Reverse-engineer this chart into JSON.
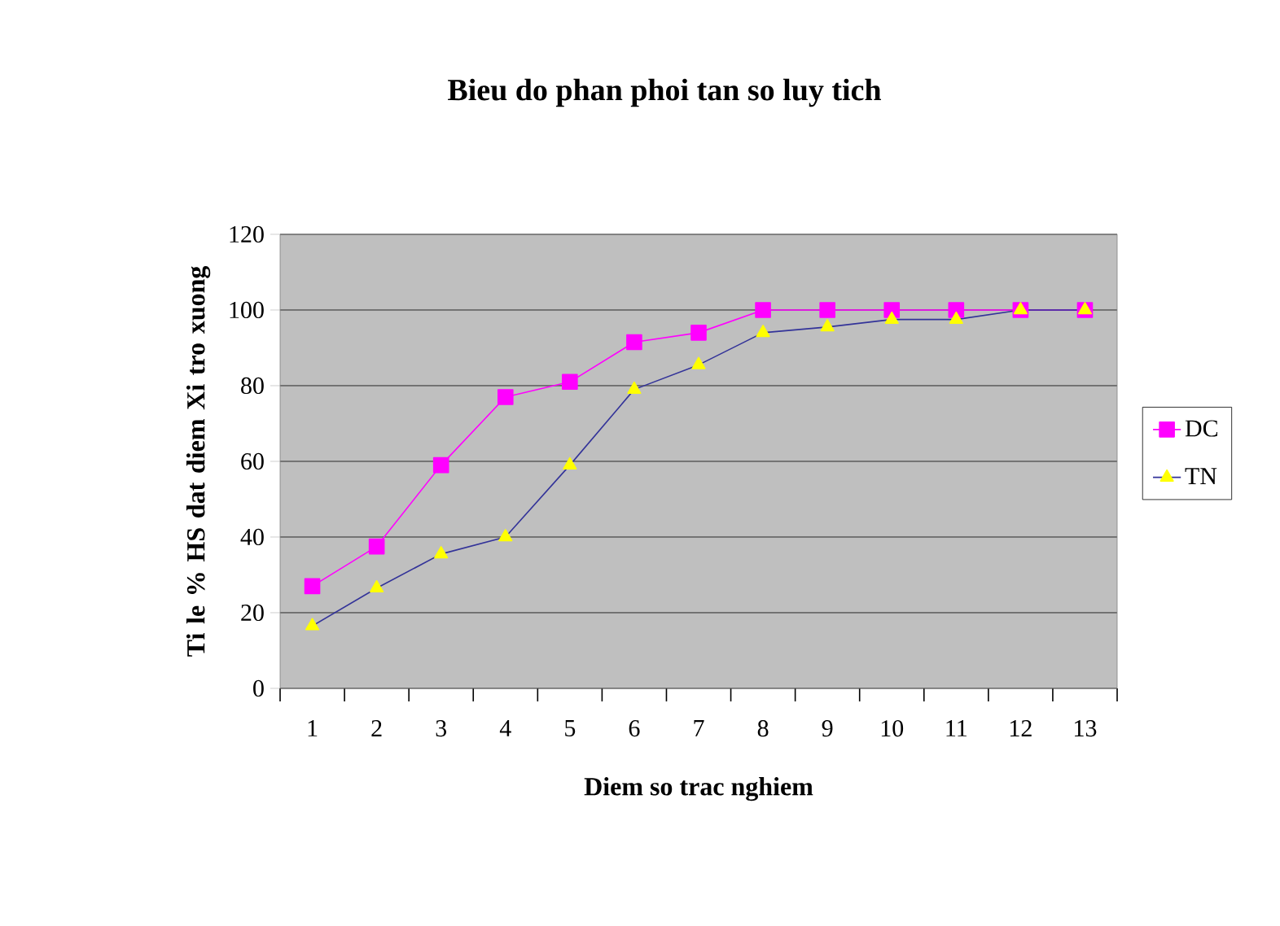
{
  "chart_data": {
    "type": "line",
    "title": "Bieu do phan phoi tan so luy tich",
    "xlabel": "Diem so trac nghiem",
    "ylabel": "Ti le % HS dat diem Xi tro xuong",
    "categories": [
      "1",
      "2",
      "3",
      "4",
      "5",
      "6",
      "7",
      "8",
      "9",
      "10",
      "11",
      "12",
      "13"
    ],
    "series": [
      {
        "name": "DC",
        "color": "#ff00ff",
        "marker": "square",
        "values": [
          27,
          37.5,
          59,
          77,
          81,
          91.5,
          94,
          100,
          100,
          100,
          100,
          100,
          100
        ]
      },
      {
        "name": "TN",
        "color": "#333399",
        "marker": "triangle",
        "values": [
          16.5,
          26.5,
          35.5,
          40,
          59,
          79,
          85.5,
          94,
          95.5,
          97.5,
          97.5,
          100,
          100
        ]
      }
    ],
    "ylim": [
      0,
      120
    ],
    "yticks": [
      0,
      20,
      40,
      60,
      80,
      100,
      120
    ],
    "grid": "y",
    "legend": "right"
  }
}
